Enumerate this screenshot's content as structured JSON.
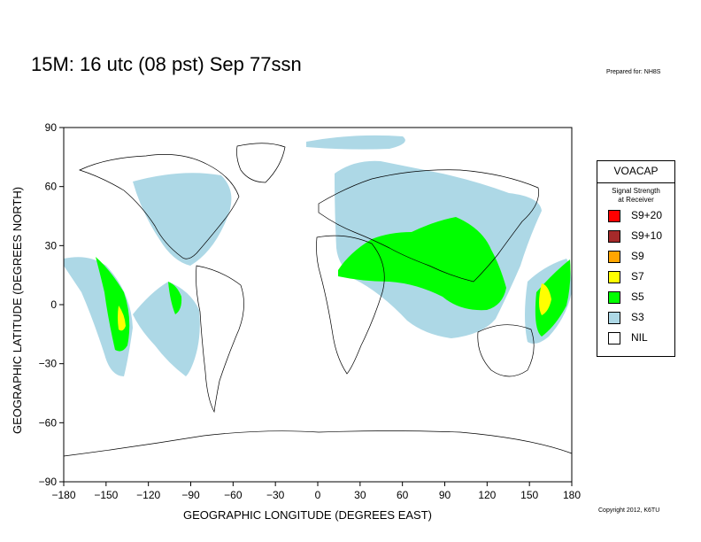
{
  "title": "15M:  16 utc (08 pst) Sep 77ssn",
  "prepared_by": "Prepared for: NH8S",
  "copyright": "Copyright 2012, K6TU",
  "map": {
    "xlabel": "GEOGRAPHIC LONGITUDE (DEGREES EAST)",
    "ylabel": "GEOGRAPHIC LATITUDE (DEGREES NORTH)",
    "lon_range": [
      -180,
      180
    ],
    "lat_range": [
      -90,
      90
    ],
    "x_ticks": [
      "−180",
      "−150",
      "−120",
      "−90",
      "−60",
      "−30",
      "0",
      "30",
      "60",
      "90",
      "120",
      "150",
      "180"
    ],
    "y_ticks": [
      "90",
      "60",
      "30",
      "0",
      "−30",
      "−60",
      "−90"
    ]
  },
  "legend": {
    "title": "VOACAP",
    "subtitle_line1": "Signal Strength",
    "subtitle_line2": "at Receiver",
    "items": [
      {
        "label": "S9+20",
        "color": "#ff0000"
      },
      {
        "label": "S9+10",
        "color": "#a52a2a"
      },
      {
        "label": "S9",
        "color": "#ffa500"
      },
      {
        "label": "S7",
        "color": "#ffff00"
      },
      {
        "label": "S5",
        "color": "#00ff00"
      },
      {
        "label": "S3",
        "color": "#add8e6"
      },
      {
        "label": "NIL",
        "color": "#ffffff"
      }
    ]
  },
  "colors": {
    "s3": "#add8e6",
    "s5": "#00ff00",
    "s7": "#ffff00"
  }
}
